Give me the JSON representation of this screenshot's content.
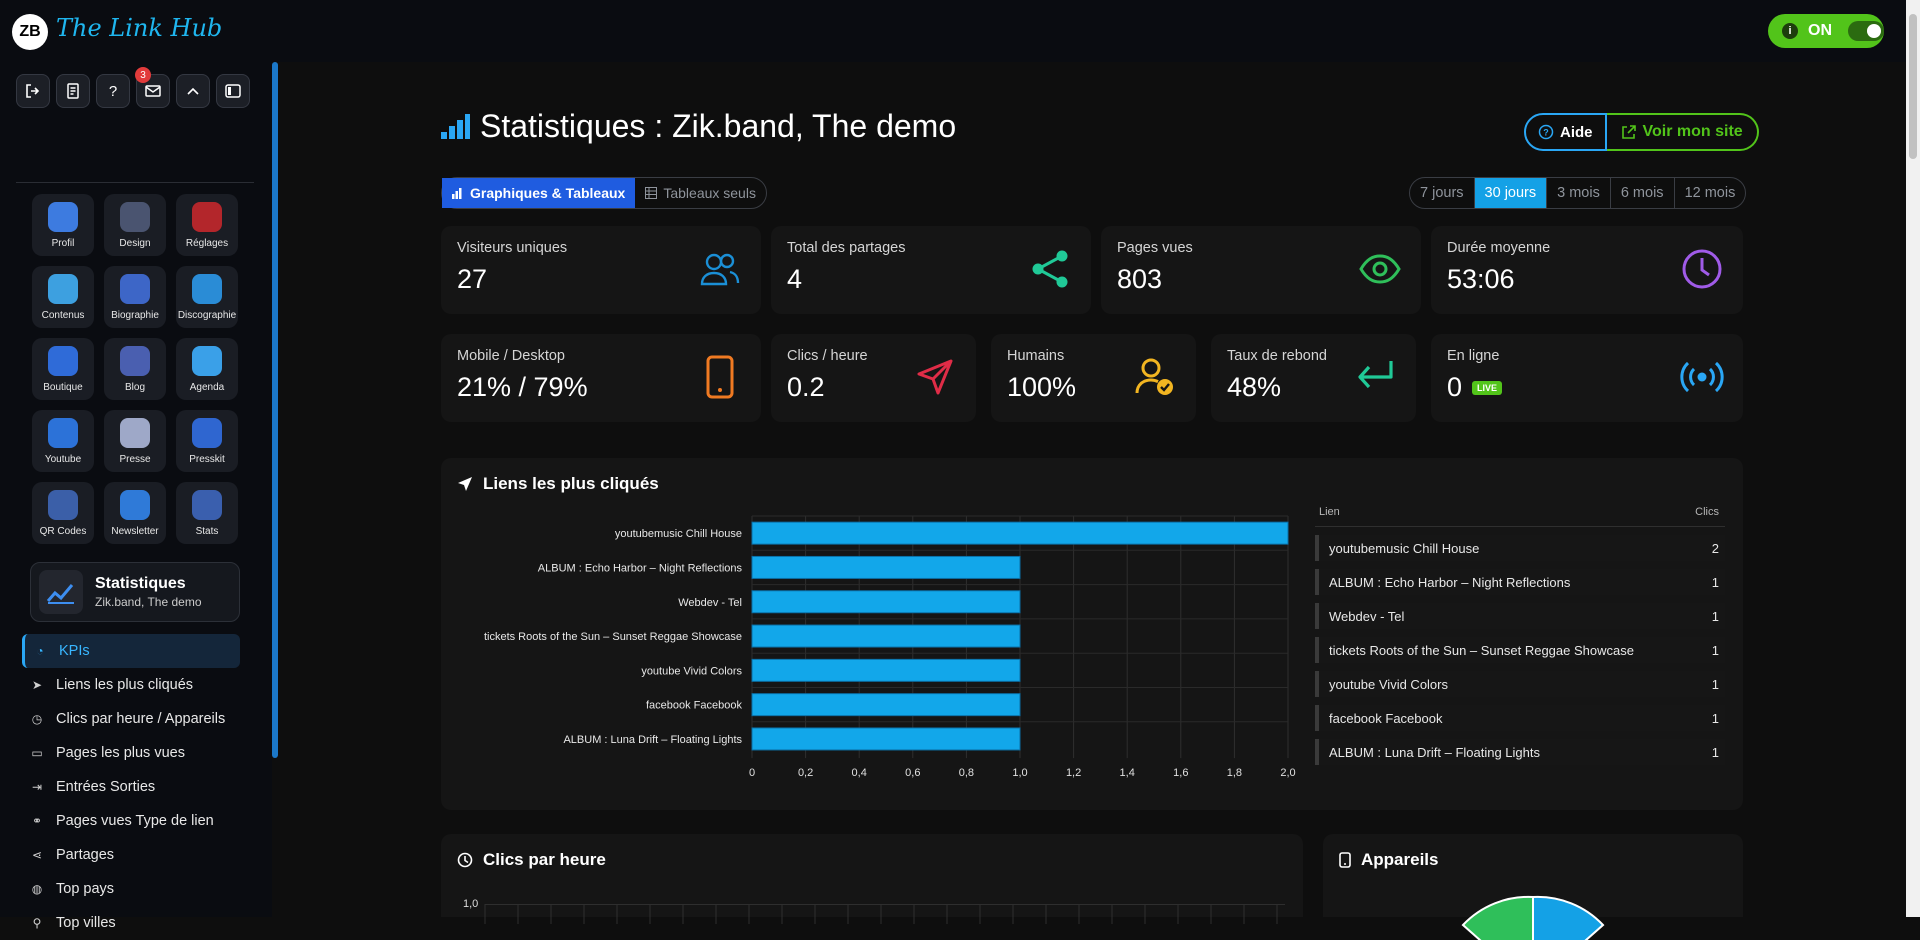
{
  "app": {
    "logo_badge": "ZB",
    "logo_text": "The Link Hub",
    "toggle_label": "ON"
  },
  "toolbar": {
    "notification_count": "3",
    "help_label": "?"
  },
  "apps": [
    {
      "name": "Profil",
      "icon": "users-icon",
      "color": "#3d7be0"
    },
    {
      "name": "Design",
      "icon": "palette-icon",
      "color": "#4a5470"
    },
    {
      "name": "Réglages",
      "icon": "settings-icon",
      "color": "#b3262b"
    },
    {
      "name": "Contenus",
      "icon": "content-icon",
      "color": "#3da0e0"
    },
    {
      "name": "Biographie",
      "icon": "bio-icon",
      "color": "#3d66c7"
    },
    {
      "name": "Discographie",
      "icon": "disc-icon",
      "color": "#2a8cd6"
    },
    {
      "name": "Boutique",
      "icon": "shop-icon",
      "color": "#2f6bd8"
    },
    {
      "name": "Blog",
      "icon": "blog-icon",
      "color": "#4a5fb0"
    },
    {
      "name": "Agenda",
      "icon": "calendar-icon",
      "color": "#3aa0e8"
    },
    {
      "name": "Youtube",
      "icon": "video-icon",
      "color": "#2c72d8"
    },
    {
      "name": "Presse",
      "icon": "press-icon",
      "color": "#9ea8c8"
    },
    {
      "name": "Presskit",
      "icon": "megaphone-icon",
      "color": "#2f66d0"
    },
    {
      "name": "QR Codes",
      "icon": "qr-icon",
      "color": "#3b5fa8"
    },
    {
      "name": "Newsletter",
      "icon": "newsletter-icon",
      "color": "#2f7ad8"
    },
    {
      "name": "Stats",
      "icon": "chart-icon",
      "color": "#3a5fae"
    }
  ],
  "stats_card": {
    "title": "Statistiques",
    "subtitle": "Zik.band, The demo"
  },
  "nav": [
    {
      "label": "KPIs",
      "icon": "gauge-icon",
      "active": true
    },
    {
      "label": "Liens les plus cliqués",
      "icon": "send-icon",
      "active": false
    },
    {
      "label": "Clics par heure / Appareils",
      "icon": "clock-icon",
      "active": false
    },
    {
      "label": "Pages les plus vues",
      "icon": "page-icon",
      "active": false
    },
    {
      "label": "Entrées Sorties",
      "icon": "enter-icon",
      "active": false
    },
    {
      "label": "Pages vues Type de lien",
      "icon": "link-icon",
      "active": false
    },
    {
      "label": "Partages",
      "icon": "share-icon",
      "active": false
    },
    {
      "label": "Top pays",
      "icon": "globe-icon",
      "active": false
    },
    {
      "label": "Top villes",
      "icon": "pin-icon",
      "active": false
    }
  ],
  "header": {
    "title": "Statistiques : Zik.band, The demo",
    "help_label": "Aide",
    "site_label": "Voir mon site"
  },
  "view_tabs": [
    "Graphiques & Tableaux",
    "Tableaux seuls"
  ],
  "periods": [
    "7 jours",
    "30 jours",
    "3 mois",
    "6 mois",
    "12 mois"
  ],
  "kpis_row1": [
    {
      "label": "Visiteurs uniques",
      "value": "27",
      "icon": "users-icon",
      "color": "#1b8fd6"
    },
    {
      "label": "Total des partages",
      "value": "4",
      "icon": "share-icon",
      "color": "#20c997"
    },
    {
      "label": "Pages vues",
      "value": "803",
      "icon": "eye-icon",
      "color": "#2fbf5a"
    },
    {
      "label": "Durée moyenne",
      "value": "53:06",
      "icon": "clock-icon",
      "color": "#a05be8"
    }
  ],
  "kpis_row2": [
    {
      "label": "Mobile / Desktop",
      "value": "21% / 79%",
      "icon": "mobile-icon",
      "color": "#f07a22"
    },
    {
      "label": "Clics / heure",
      "value": "0.2",
      "icon": "send-icon",
      "color": "#e02c47"
    },
    {
      "label": "Humains",
      "value": "100%",
      "icon": "user-check-icon",
      "color": "#f2b521"
    },
    {
      "label": "Taux de rebond",
      "value": "48%",
      "icon": "return-icon",
      "color": "#20c997"
    },
    {
      "label": "En ligne",
      "value": "0",
      "badge": "LIVE",
      "icon": "broadcast-icon",
      "color": "#2aa7f5"
    }
  ],
  "links_panel": {
    "title": "Liens les plus cliqués",
    "col_link": "Lien",
    "col_clicks": "Clics",
    "rows": [
      {
        "name": "youtubemusic Chill House",
        "clicks": "2"
      },
      {
        "name": "ALBUM : Echo Harbor – Night Reflections",
        "clicks": "1"
      },
      {
        "name": "Webdev - Tel",
        "clicks": "1"
      },
      {
        "name": "tickets Roots of the Sun – Sunset Reggae Showcase",
        "clicks": "1"
      },
      {
        "name": "youtube Vivid Colors",
        "clicks": "1"
      },
      {
        "name": "facebook Facebook",
        "clicks": "1"
      },
      {
        "name": "ALBUM : Luna Drift – Floating Lights",
        "clicks": "1"
      }
    ]
  },
  "chart_data": {
    "type": "bar",
    "orientation": "horizontal",
    "categories": [
      "youtubemusic Chill House",
      "ALBUM :  Echo Harbor – Night Reflections",
      "Webdev - Tel",
      "tickets Roots of the Sun – Sunset Reggae Showcase",
      "youtube Vivid Colors",
      "facebook Facebook",
      "ALBUM :  Luna Drift – Floating Lights"
    ],
    "values": [
      2,
      1,
      1,
      1,
      1,
      1,
      1
    ],
    "xlim": [
      0,
      2
    ],
    "ticks": [
      "0",
      "0,2",
      "0,4",
      "0,6",
      "0,8",
      "1,0",
      "1,2",
      "1,4",
      "1,6",
      "1,8",
      "2,0"
    ],
    "color": "#12a7ea",
    "grid": true
  },
  "hours_panel": {
    "title": "Clics par heure",
    "y_top_label": "1,0"
  },
  "devices_panel": {
    "title": "Appareils"
  }
}
